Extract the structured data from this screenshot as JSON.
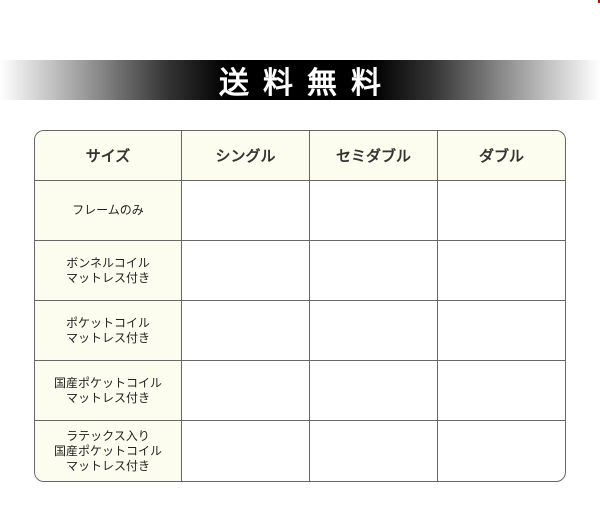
{
  "banner": {
    "title": "送料無料"
  },
  "table": {
    "headers": [
      "サイズ",
      "シングル",
      "セミダブル",
      "ダブル"
    ],
    "rows": [
      {
        "label": "フレームのみ",
        "values": [
          "",
          "",
          ""
        ]
      },
      {
        "label": "ボンネルコイル\nマットレス付き",
        "values": [
          "",
          "",
          ""
        ]
      },
      {
        "label": "ポケットコイル\nマットレス付き",
        "values": [
          "",
          "",
          ""
        ]
      },
      {
        "label": "国産ポケットコイル\nマットレス付き",
        "values": [
          "",
          "",
          ""
        ]
      },
      {
        "label": "ラテックス入り\n国産ポケットコイル\nマットレス付き",
        "values": [
          "",
          "",
          ""
        ]
      }
    ]
  }
}
